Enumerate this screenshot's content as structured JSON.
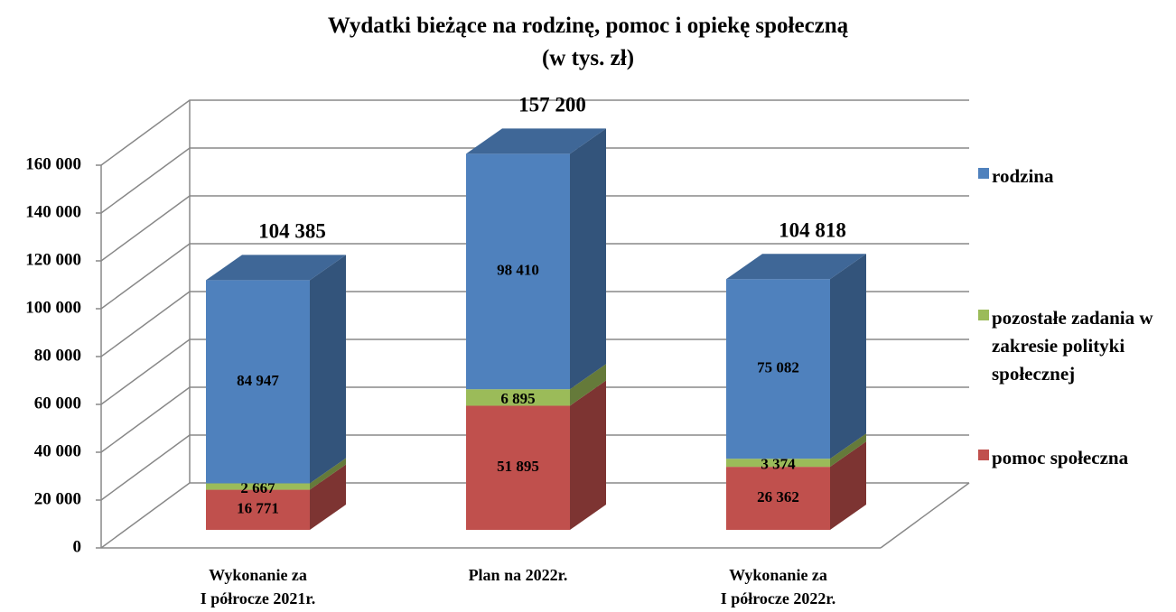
{
  "chart_data": {
    "type": "bar3d_stacked",
    "title": "Wydatki bieżące na rodzinę, pomoc i opiekę społeczną",
    "subtitle": "(w tys. zł)",
    "categories": [
      "Wykonanie za\nI półrocze 2021r.",
      "Plan na 2022r.",
      "Wykonanie za\nI półrocze 2022r."
    ],
    "series": [
      {
        "name": "pomoc społeczna",
        "color": "#c0504d",
        "values": [
          16771,
          51895,
          26362
        ],
        "value_labels": [
          "16 771",
          "51 895",
          "26 362"
        ]
      },
      {
        "name": "pozostałe zadania w zakresie polityki społecznej",
        "color": "#9bbb59",
        "values": [
          2667,
          6895,
          3374
        ],
        "value_labels": [
          "2 667",
          "6 895",
          "3 374"
        ]
      },
      {
        "name": "rodzina",
        "color": "#4f81bd",
        "values": [
          84947,
          98410,
          75082
        ],
        "value_labels": [
          "84 947",
          "98 410",
          "75 082"
        ]
      }
    ],
    "totals": [
      104385,
      157200,
      104818
    ],
    "total_labels": [
      "104 385",
      "157 200",
      "104 818"
    ],
    "ylim": [
      0,
      160000
    ],
    "yticks": [
      0,
      {
        "value": 20000,
        "label": "20 000"
      },
      {
        "value": 40000,
        "label": "40 000"
      },
      {
        "value": 60000,
        "label": "60 000"
      },
      {
        "value": 80000,
        "label": "80 000"
      },
      {
        "value": 100000,
        "label": "100 000"
      },
      {
        "value": 120000,
        "label": "120 000"
      },
      {
        "value": 140000,
        "label": "140 000"
      },
      {
        "value": 160000,
        "label": "160 000"
      }
    ],
    "grid": true,
    "legend": "right"
  }
}
